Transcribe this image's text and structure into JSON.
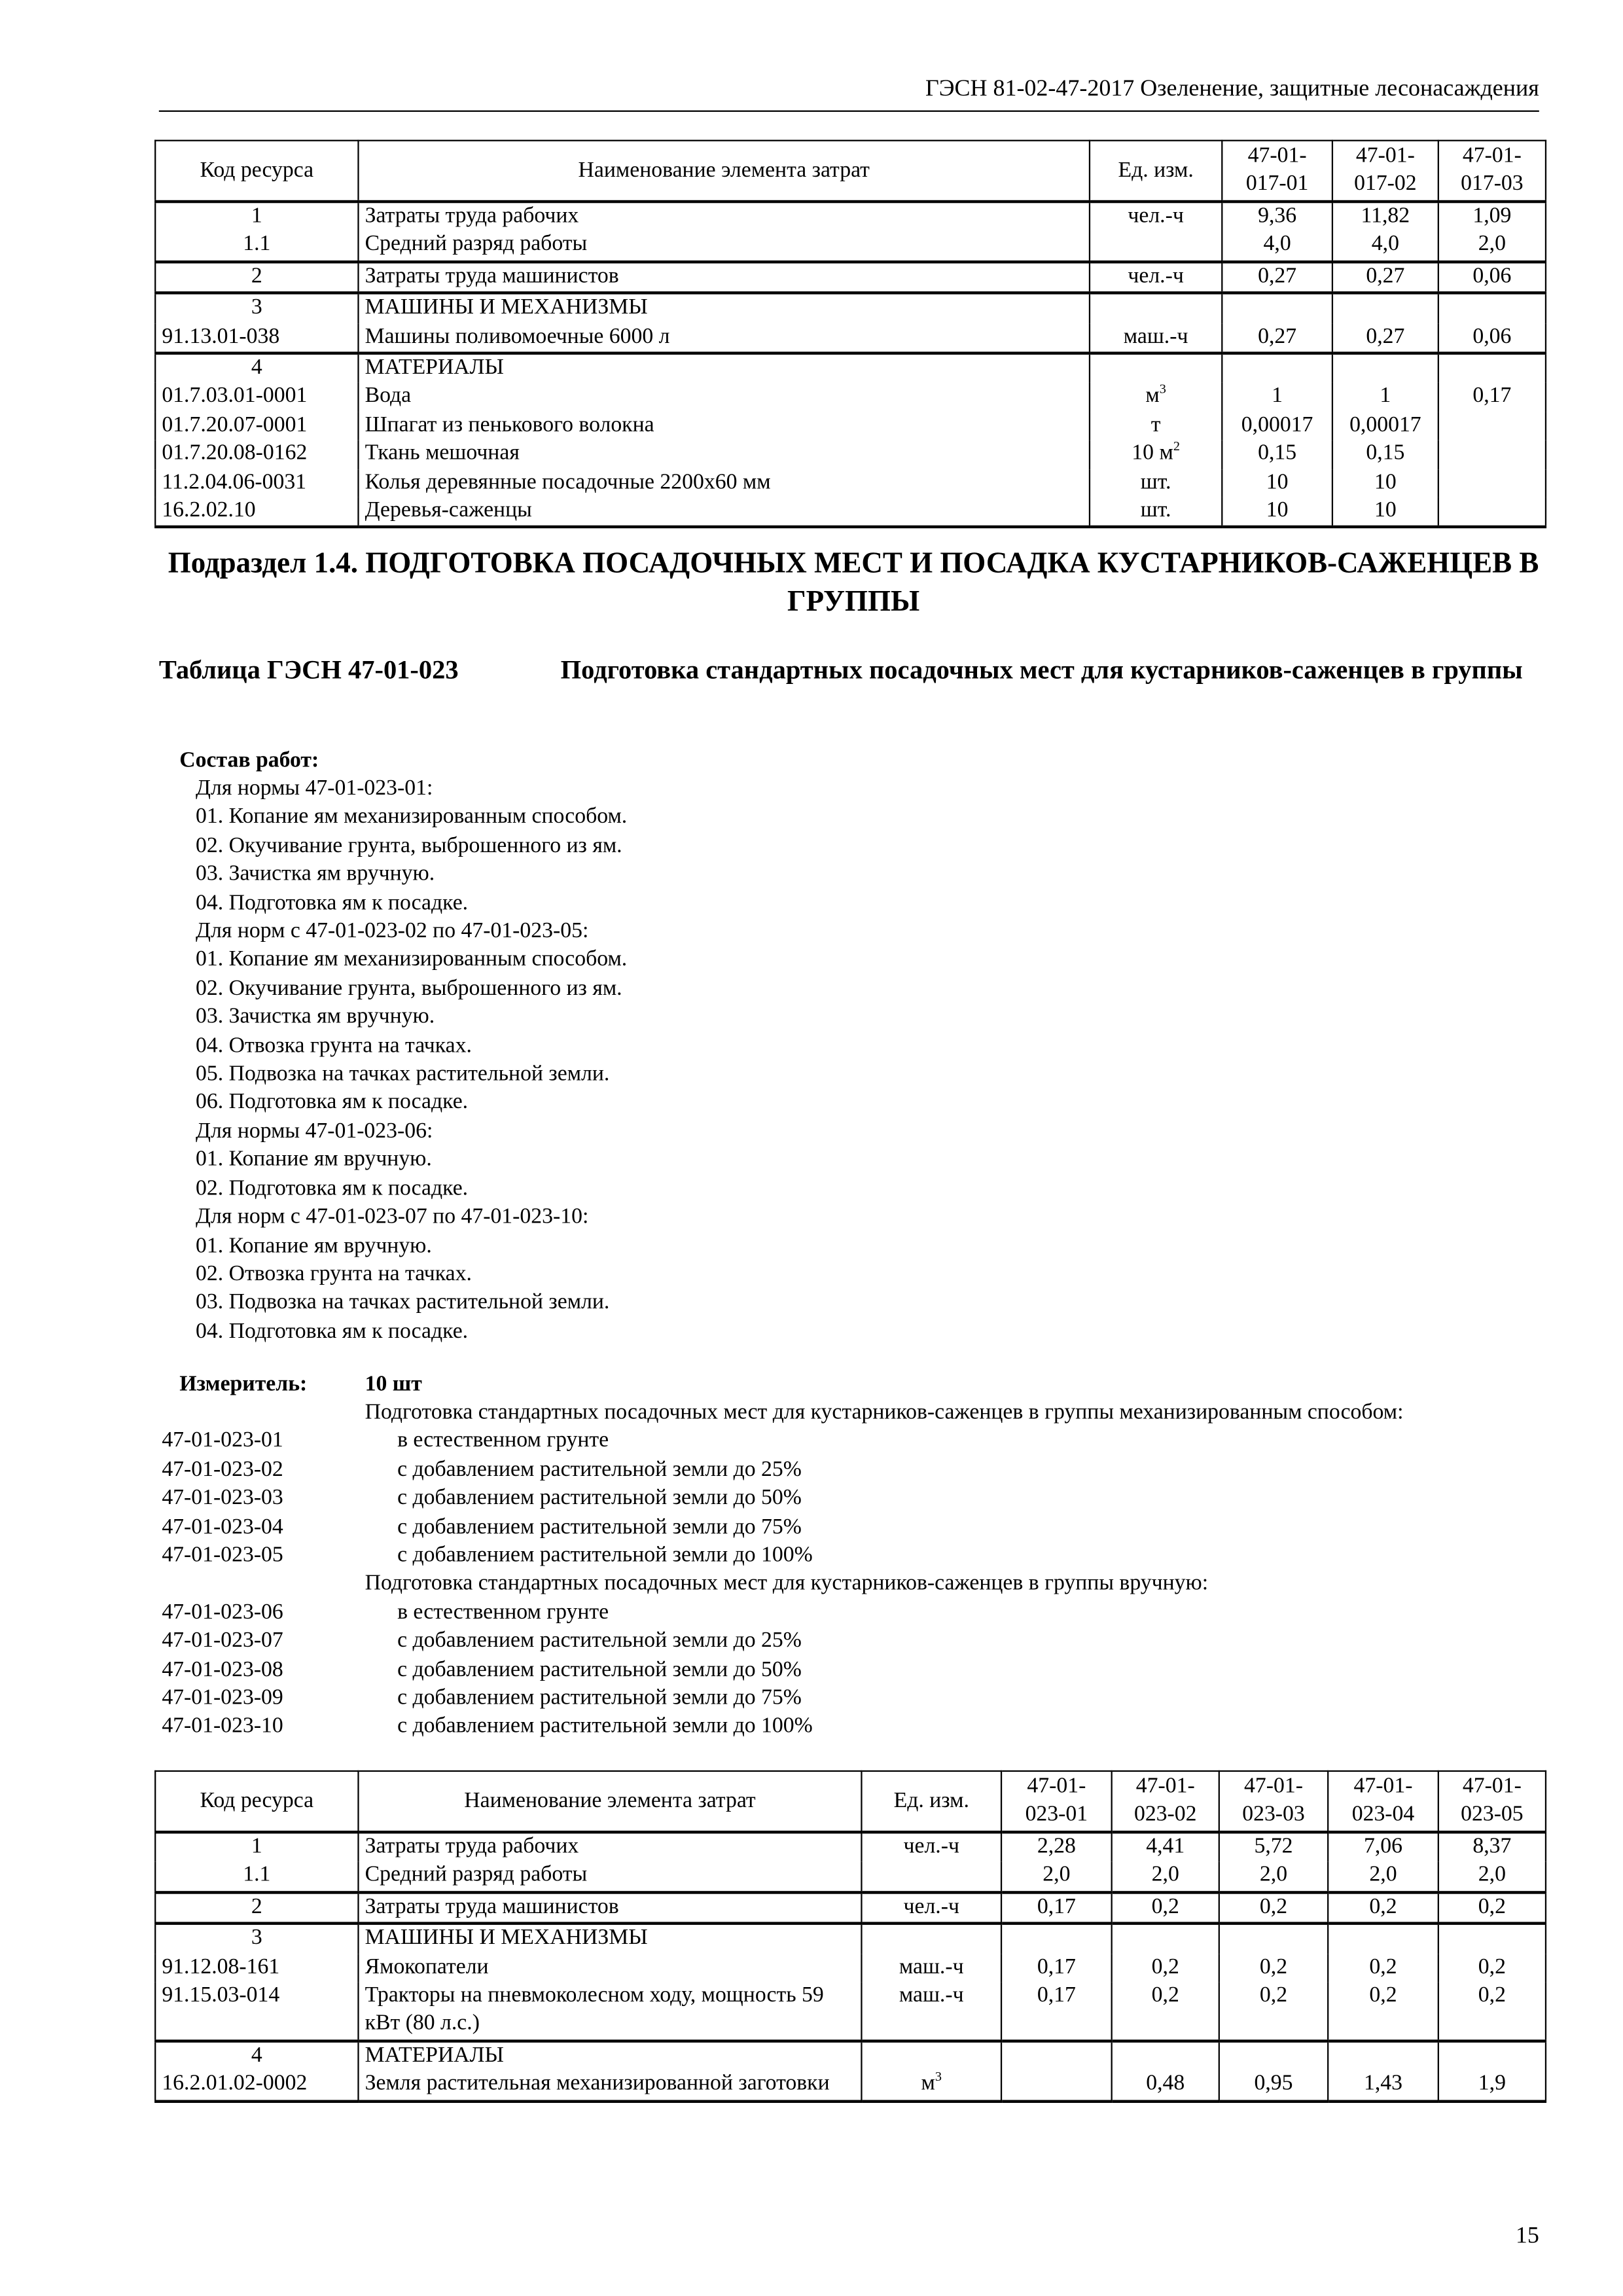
{
  "header": {
    "title": "ГЭСН 81-02-47-2017 Озеленение, защитные лесонасаждения"
  },
  "table1": {
    "headers": [
      "Код ресурса",
      "Наименование элемента затрат",
      "Ед. изм.",
      "47-01-\n017-01",
      "47-01-\n017-02",
      "47-01-\n017-03"
    ],
    "groups": [
      {
        "rows": [
          {
            "code": "1",
            "name": "Затраты труда рабочих",
            "unit": "чел.-ч",
            "values": [
              "9,36",
              "11,82",
              "1,09"
            ]
          },
          {
            "code": "1.1",
            "name": "Средний разряд работы",
            "unit": "",
            "values": [
              "4,0",
              "4,0",
              "2,0"
            ]
          }
        ]
      },
      {
        "rows": [
          {
            "code": "2",
            "name": "Затраты труда машинистов",
            "unit": "чел.-ч",
            "values": [
              "0,27",
              "0,27",
              "0,06"
            ]
          }
        ]
      },
      {
        "rows": [
          {
            "code": "3",
            "name": "МАШИНЫ И МЕХАНИЗМЫ",
            "heading": true,
            "unit": "",
            "values": [
              "",
              "",
              ""
            ]
          },
          {
            "code": "91.13.01-038",
            "name": "Машины поливомоечные 6000 л",
            "unit": "маш.-ч",
            "values": [
              "0,27",
              "0,27",
              "0,06"
            ]
          }
        ]
      },
      {
        "rows": [
          {
            "code": "4",
            "name": "МАТЕРИАЛЫ",
            "heading": true,
            "unit": "",
            "values": [
              "",
              "",
              ""
            ]
          },
          {
            "code": "01.7.03.01-0001",
            "name": "Вода",
            "unit": "м",
            "unit_sup": "3",
            "values": [
              "1",
              "1",
              "0,17"
            ]
          },
          {
            "code": "01.7.20.07-0001",
            "name": "Шпагат из пенькового волокна",
            "unit": "т",
            "values": [
              "0,00017",
              "0,00017",
              ""
            ]
          },
          {
            "code": "01.7.20.08-0162",
            "name": "Ткань мешочная",
            "unit": "10 м",
            "unit_sup": "2",
            "values": [
              "0,15",
              "0,15",
              ""
            ]
          },
          {
            "code": "11.2.04.06-0031",
            "name": "Колья деревянные посадочные 2200х60 мм",
            "unit": "шт.",
            "values": [
              "10",
              "10",
              ""
            ]
          },
          {
            "code": "16.2.02.10",
            "name": "Деревья-саженцы",
            "unit": "шт.",
            "values": [
              "10",
              "10",
              ""
            ]
          }
        ]
      }
    ]
  },
  "section_title": "Подраздел 1.4. ПОДГОТОВКА ПОСАДОЧНЫХ МЕСТ И ПОСАДКА КУСТАРНИКОВ-САЖЕНЦЕВ В ГРУППЫ",
  "table_title": {
    "code": "Таблица ГЭСН 47-01-023",
    "description": "Подготовка стандартных посадочных мест для кустарников-саженцев в группы"
  },
  "composition": {
    "label": "Состав работ:",
    "lines": [
      "Для нормы 47-01-023-01:",
      "01. Копание ям механизированным способом.",
      "02. Окучивание грунта, выброшенного из ям.",
      "03. Зачистка ям вручную.",
      "04. Подготовка ям к посадке.",
      "Для норм с 47-01-023-02 по 47-01-023-05:",
      "01. Копание ям механизированным способом.",
      "02. Окучивание грунта, выброшенного из ям.",
      "03. Зачистка ям вручную.",
      "04. Отвозка грунта на тачках.",
      "05. Подвозка на тачках растительной земли.",
      "06. Подготовка ям к посадке.",
      "Для нормы 47-01-023-06:",
      "01. Копание ям вручную.",
      "02. Подготовка ям к посадке.",
      "Для норм с 47-01-023-07 по 47-01-023-10:",
      "01. Копание ям вручную.",
      "02. Отвозка грунта на тачках.",
      "03. Подвозка на тачках растительной земли.",
      "04. Подготовка ям к посадке."
    ]
  },
  "measure": {
    "label": "Измеритель:",
    "value": "10 шт",
    "items": [
      {
        "heading": "Подготовка стандартных посадочных мест для кустарников-саженцев в группы механизированным способом:"
      },
      {
        "code": "47-01-023-01",
        "desc": "в естественном грунте"
      },
      {
        "code": "47-01-023-02",
        "desc": "с добавлением растительной земли до 25%"
      },
      {
        "code": "47-01-023-03",
        "desc": "с добавлением растительной земли до 50%"
      },
      {
        "code": "47-01-023-04",
        "desc": "с добавлением растительной земли до 75%"
      },
      {
        "code": "47-01-023-05",
        "desc": "с добавлением растительной земли до 100%"
      },
      {
        "heading": "Подготовка стандартных посадочных мест для кустарников-саженцев в группы вручную:"
      },
      {
        "code": "47-01-023-06",
        "desc": "в естественном грунте"
      },
      {
        "code": "47-01-023-07",
        "desc": "с добавлением растительной земли до 25%"
      },
      {
        "code": "47-01-023-08",
        "desc": "с добавлением растительной земли до 50%"
      },
      {
        "code": "47-01-023-09",
        "desc": "с добавлением растительной земли до 75%"
      },
      {
        "code": "47-01-023-10",
        "desc": "с добавлением растительной земли до 100%"
      }
    ]
  },
  "table2": {
    "headers": [
      "Код ресурса",
      "Наименование элемента затрат",
      "Ед. изм.",
      "47-01-\n023-01",
      "47-01-\n023-02",
      "47-01-\n023-03",
      "47-01-\n023-04",
      "47-01-\n023-05"
    ],
    "groups": [
      {
        "rows": [
          {
            "code": "1",
            "name": "Затраты труда рабочих",
            "unit": "чел.-ч",
            "values": [
              "2,28",
              "4,41",
              "5,72",
              "7,06",
              "8,37"
            ]
          },
          {
            "code": "1.1",
            "name": "Средний разряд работы",
            "unit": "",
            "values": [
              "2,0",
              "2,0",
              "2,0",
              "2,0",
              "2,0"
            ]
          }
        ]
      },
      {
        "rows": [
          {
            "code": "2",
            "name": "Затраты труда машинистов",
            "unit": "чел.-ч",
            "values": [
              "0,17",
              "0,2",
              "0,2",
              "0,2",
              "0,2"
            ]
          }
        ]
      },
      {
        "rows": [
          {
            "code": "3",
            "name": "МАШИНЫ И МЕХАНИЗМЫ",
            "heading": true,
            "unit": "",
            "values": [
              "",
              "",
              "",
              "",
              ""
            ]
          },
          {
            "code": "91.12.08-161",
            "name": "Ямокопатели",
            "unit": "маш.-ч",
            "values": [
              "0,17",
              "0,2",
              "0,2",
              "0,2",
              "0,2"
            ]
          },
          {
            "code": "91.15.03-014",
            "name": "Тракторы на пневмоколесном ходу, мощность 59 кВт (80 л.с.)",
            "unit": "маш.-ч",
            "values": [
              "0,17",
              "0,2",
              "0,2",
              "0,2",
              "0,2"
            ]
          }
        ]
      },
      {
        "rows": [
          {
            "code": "4",
            "name": "МАТЕРИАЛЫ",
            "heading": true,
            "unit": "",
            "values": [
              "",
              "",
              "",
              "",
              ""
            ]
          },
          {
            "code": "16.2.01.02-0002",
            "name": "Земля растительная механизированной заготовки",
            "unit": "м",
            "unit_sup": "3",
            "values": [
              "",
              "0,48",
              "0,95",
              "1,43",
              "1,9"
            ]
          }
        ]
      }
    ]
  },
  "page_number": "15"
}
